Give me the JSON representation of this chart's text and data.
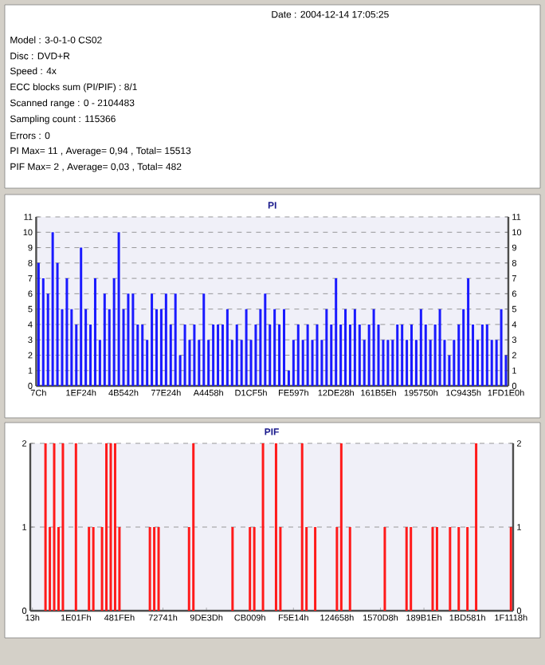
{
  "chart_data": [
    {
      "type": "other",
      "annotations": [
        "Date : 2004-12-14 17:05:25",
        "Model : 3-0-1-0 CS02",
        "Disc : DVD+R",
        "Speed : 4x",
        "ECC blocks sum (PI/PIF) : 8/1",
        "Scanned range : 0 - 2104483",
        "Sampling count : 115366",
        "Errors : 0",
        "PI Max= 11 , Average= 0,94 , Total= 15513",
        "PIF Max= 2 , Average= 0,03 , Total= 482"
      ]
    },
    {
      "type": "bar",
      "title": "PI",
      "color": "#1a1aff",
      "grid": "y",
      "ylim": [
        0,
        11
      ],
      "yticks": [
        0,
        1,
        2,
        3,
        4,
        5,
        6,
        7,
        8,
        9,
        10,
        11
      ],
      "y2lim": [
        0,
        11
      ],
      "y2ticks": [
        0,
        1,
        2,
        3,
        4,
        5,
        6,
        7,
        8,
        9,
        10,
        11
      ],
      "categories": [
        "7Ch",
        null,
        null,
        null,
        null,
        null,
        null,
        null,
        null,
        "1EF24h",
        null,
        null,
        null,
        null,
        null,
        null,
        null,
        null,
        "4B542h",
        null,
        null,
        null,
        null,
        null,
        null,
        null,
        null,
        "77E24h",
        null,
        null,
        null,
        null,
        null,
        null,
        null,
        null,
        "A4458h",
        null,
        null,
        null,
        null,
        null,
        null,
        null,
        null,
        "D1CF5h",
        null,
        null,
        null,
        null,
        null,
        null,
        null,
        null,
        "FE597h",
        null,
        null,
        null,
        null,
        null,
        null,
        null,
        null,
        "12DE28h",
        null,
        null,
        null,
        null,
        null,
        null,
        null,
        null,
        "161B5Eh",
        null,
        null,
        null,
        null,
        null,
        null,
        null,
        null,
        "195750h",
        null,
        null,
        null,
        null,
        null,
        null,
        null,
        null,
        "1C9435h",
        null,
        null,
        null,
        null,
        null,
        null,
        null,
        null,
        "1FD1E0h"
      ],
      "values": [
        8,
        7,
        6,
        10,
        8,
        5,
        7,
        5,
        4,
        9,
        5,
        4,
        7,
        3,
        6,
        5,
        7,
        10,
        5,
        6,
        6,
        4,
        4,
        3,
        6,
        5,
        5,
        6,
        4,
        6,
        2,
        4,
        3,
        4,
        3,
        6,
        3,
        4,
        4,
        4,
        5,
        3,
        4,
        3,
        5,
        3,
        4,
        5,
        6,
        4,
        5,
        4,
        5,
        1,
        3,
        4,
        3,
        4,
        3,
        4,
        3,
        5,
        4,
        7,
        4,
        5,
        4,
        5,
        4,
        3,
        4,
        5,
        4,
        3,
        3,
        3,
        4,
        4,
        3,
        4,
        3,
        5,
        4,
        3,
        4,
        5,
        3,
        2,
        3,
        4,
        5,
        7,
        4,
        3,
        4,
        4,
        3,
        3,
        5,
        2
      ]
    },
    {
      "type": "bar",
      "title": "PIF",
      "color": "#ff1a1a",
      "grid": "y",
      "ylim": [
        0,
        2
      ],
      "yticks": [
        0,
        1,
        2
      ],
      "y2lim": [
        0,
        2
      ],
      "y2ticks": [
        0,
        1,
        2
      ],
      "categories": [
        "13h",
        null,
        null,
        null,
        null,
        null,
        null,
        null,
        null,
        null,
        "1E01Fh",
        null,
        null,
        null,
        null,
        null,
        null,
        null,
        null,
        null,
        "481FEh",
        null,
        null,
        null,
        null,
        null,
        null,
        null,
        null,
        null,
        "72741h",
        null,
        null,
        null,
        null,
        null,
        null,
        null,
        null,
        null,
        "9DE3Dh",
        null,
        null,
        null,
        null,
        null,
        null,
        null,
        null,
        null,
        "CB009h",
        null,
        null,
        null,
        null,
        null,
        null,
        null,
        null,
        null,
        "F5E14h",
        null,
        null,
        null,
        null,
        null,
        null,
        null,
        null,
        null,
        "124658h",
        null,
        null,
        null,
        null,
        null,
        null,
        null,
        null,
        null,
        "1570D8h",
        null,
        null,
        null,
        null,
        null,
        null,
        null,
        null,
        null,
        "189B1Eh",
        null,
        null,
        null,
        null,
        null,
        null,
        null,
        null,
        null,
        "1BD581h",
        null,
        null,
        null,
        null,
        null,
        null,
        null,
        null,
        null,
        "1F1118h"
      ],
      "values": [
        0,
        0,
        0,
        2,
        1,
        2,
        1,
        2,
        0,
        0,
        2,
        0,
        0,
        1,
        1,
        0,
        1,
        2,
        2,
        2,
        1,
        0,
        0,
        0,
        0,
        0,
        0,
        1,
        1,
        1,
        0,
        0,
        0,
        0,
        0,
        0,
        1,
        2,
        0,
        0,
        0,
        0,
        0,
        0,
        0,
        0,
        1,
        0,
        0,
        0,
        1,
        1,
        0,
        2,
        0,
        0,
        2,
        1,
        0,
        0,
        0,
        0,
        2,
        1,
        0,
        1,
        0,
        0,
        0,
        0,
        1,
        2,
        0,
        1,
        0,
        0,
        0,
        0,
        0,
        0,
        0,
        1,
        0,
        0,
        0,
        0,
        1,
        1,
        0,
        0,
        0,
        0,
        1,
        1,
        0,
        0,
        1,
        0,
        1,
        0,
        1,
        0,
        2,
        0,
        0,
        0,
        0,
        0,
        0,
        0,
        1
      ]
    }
  ]
}
